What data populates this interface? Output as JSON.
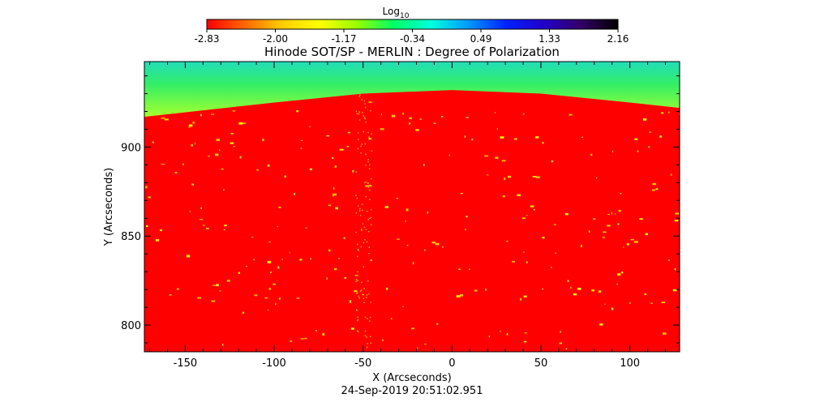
{
  "colorbar": {
    "label_base": "Log",
    "label_sub": "10",
    "ticks": [
      "-2.83",
      "-2.00",
      "-1.17",
      "-0.34",
      "0.49",
      "1.33",
      "2.16"
    ],
    "range": [
      -2.83,
      2.16
    ],
    "colors": [
      "#ff0000",
      "#ff6600",
      "#ffcc00",
      "#ffff00",
      "#99ff00",
      "#00ff66",
      "#00ffdd",
      "#0099ff",
      "#0022ff",
      "#2200cc",
      "#330066",
      "#000000"
    ]
  },
  "chart_data": {
    "type": "heatmap",
    "title": "Hinode SOT/SP - MERLIN : Degree of Polarization",
    "xlabel": "X (Arcseconds)",
    "ylabel": "Y (Arcseconds)",
    "xlim": [
      -173,
      128
    ],
    "ylim": [
      785,
      948
    ],
    "xticks": [
      -150,
      -100,
      -50,
      0,
      50,
      100
    ],
    "yticks": [
      800,
      850,
      900
    ],
    "xtick_labels": [
      "-150",
      "-100",
      "-50",
      "0",
      "50",
      "100"
    ],
    "ytick_labels": [
      "800",
      "850",
      "900"
    ],
    "limb": [
      [
        -173,
        917
      ],
      [
        -100,
        925
      ],
      [
        -50,
        930
      ],
      [
        0,
        932
      ],
      [
        50,
        930
      ],
      [
        100,
        925
      ],
      [
        128,
        922
      ]
    ],
    "off_limb_color": "#33ee66",
    "disk_color": "#ff0000",
    "colormap": "reversed rainbow"
  },
  "timestamp": "24-Sep-2019 20:51:02.951"
}
